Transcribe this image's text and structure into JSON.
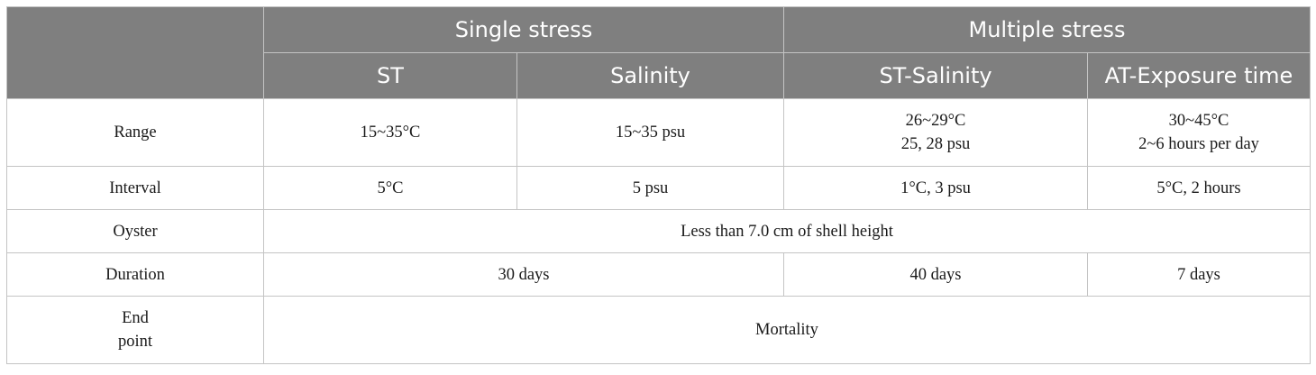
{
  "header": {
    "group1": "Single stress",
    "group2": "Multiple stress",
    "columns": [
      "ST",
      "Salinity",
      "ST-Salinity",
      "AT-Exposure time"
    ]
  },
  "rows": {
    "range": {
      "label": "Range",
      "st": "15~35°C",
      "salinity": "15~35 psu",
      "st_salinity": [
        "26~29°C",
        "25, 28 psu"
      ],
      "at_exposure": [
        "30~45°C",
        "2~6 hours per day"
      ]
    },
    "interval": {
      "label": "Interval",
      "st": "5°C",
      "salinity": "5 psu",
      "st_salinity": "1°C, 3 psu",
      "at_exposure": "5°C, 2 hours"
    },
    "oyster": {
      "label": "Oyster",
      "value": "Less than 7.0 cm of shell height"
    },
    "duration": {
      "label": "Duration",
      "single": "30 days",
      "st_salinity": "40 days",
      "at_exposure": "7 days"
    },
    "end_point": {
      "label": [
        "End",
        "point"
      ],
      "value": "Mortality"
    }
  }
}
